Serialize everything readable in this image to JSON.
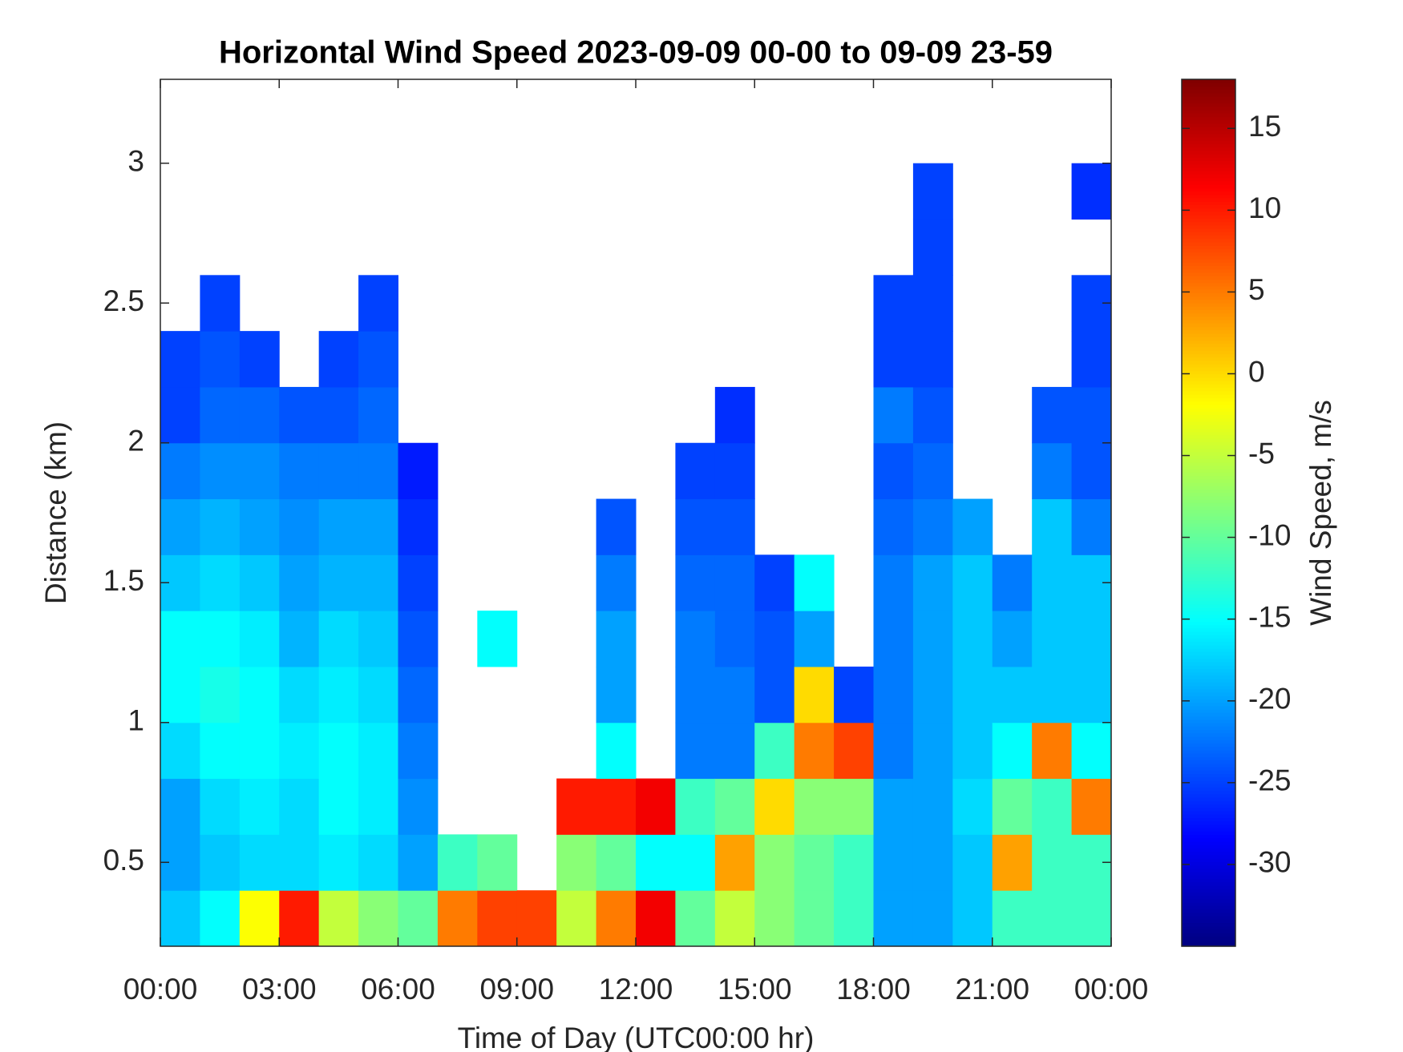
{
  "chart_data": {
    "type": "heatmap",
    "title": "Horizontal Wind Speed 2023-09-09 00-00 to 09-09 23-59",
    "xlabel": "Time of Day (UTC00:00 hr)",
    "ylabel": "Distance (km)",
    "colorbar_label": "Wind Speed, m/s",
    "colormap": "jet",
    "x": [
      0.5,
      1.5,
      2.5,
      3.5,
      4.5,
      5.5,
      6.5,
      7.5,
      8.5,
      9.5,
      10.5,
      11.5,
      12.5,
      13.5,
      14.5,
      15.5,
      16.5,
      17.5,
      18.5,
      19.5,
      20.5,
      21.5,
      22.5,
      23.5
    ],
    "y": [
      0.3,
      0.5,
      0.7,
      0.9,
      1.1,
      1.3,
      1.5,
      1.7,
      1.9,
      2.1,
      2.3,
      2.5,
      2.7,
      2.9,
      3.1
    ],
    "values": [
      [
        -18,
        -20,
        -20,
        -17,
        -15,
        -15,
        -18,
        -20,
        -22,
        -25,
        -25,
        null,
        null,
        null,
        null
      ],
      [
        -15,
        -18,
        -17,
        -15,
        -14,
        -15,
        -17,
        -19,
        -21,
        -23,
        -24,
        -25,
        null,
        null,
        null
      ],
      [
        -2,
        -17,
        -16,
        -15,
        -15,
        -16,
        -18,
        -20,
        -21,
        -23,
        -25,
        null,
        null,
        null,
        null
      ],
      [
        10,
        -17,
        -17,
        -16,
        -17,
        -19,
        -20,
        -21,
        -22,
        -24,
        null,
        null,
        null,
        null,
        null
      ],
      [
        -5,
        -16,
        -15,
        -15,
        -16,
        -17,
        -19,
        -20,
        -22,
        -24,
        -25,
        null,
        null,
        null,
        null
      ],
      [
        -8,
        -17,
        -16,
        -16,
        -17,
        -18,
        -19,
        -20,
        -22,
        -23,
        -24,
        -25,
        null,
        null,
        null
      ],
      [
        -10,
        -20,
        -21,
        -22,
        -23,
        -24,
        -25,
        -26,
        -27,
        null,
        null,
        null,
        null,
        null,
        null
      ],
      [
        5,
        -12,
        null,
        null,
        null,
        null,
        null,
        null,
        null,
        null,
        null,
        null,
        null,
        null,
        null
      ],
      [
        8,
        -10,
        null,
        null,
        null,
        -15,
        null,
        null,
        null,
        null,
        null,
        null,
        null,
        null,
        null
      ],
      [
        8,
        null,
        null,
        null,
        null,
        null,
        null,
        null,
        null,
        null,
        null,
        null,
        null,
        null,
        null
      ],
      [
        -5,
        -8,
        10,
        null,
        null,
        null,
        null,
        null,
        null,
        null,
        null,
        null,
        null,
        null,
        null
      ],
      [
        5,
        -10,
        10,
        -15,
        -20,
        -20,
        -22,
        -24,
        null,
        null,
        null,
        null,
        null,
        null,
        null
      ],
      [
        12,
        -15,
        12,
        null,
        null,
        null,
        null,
        null,
        null,
        null,
        null,
        null,
        null,
        null,
        null
      ],
      [
        -10,
        -15,
        -12,
        -22,
        -22,
        -22,
        -23,
        -24,
        -25,
        null,
        null,
        null,
        null,
        null,
        null
      ],
      [
        -5,
        3,
        -10,
        -22,
        -22,
        -23,
        -23,
        -24,
        -25,
        -26,
        null,
        null,
        null,
        null,
        null
      ],
      [
        -8,
        -8,
        0,
        -12,
        -24,
        -24,
        -25,
        null,
        null,
        null,
        null,
        null,
        null,
        null,
        null
      ],
      [
        -10,
        -10,
        -8,
        5,
        0,
        -20,
        -15,
        null,
        null,
        null,
        null,
        null,
        null,
        null,
        null
      ],
      [
        -12,
        -12,
        -8,
        8,
        -25,
        null,
        null,
        null,
        null,
        null,
        null,
        null,
        null,
        null,
        null
      ],
      [
        -20,
        -20,
        -20,
        -22,
        -22,
        -22,
        -22,
        -23,
        -24,
        -22,
        -25,
        -25,
        null,
        null,
        null
      ],
      [
        -20,
        -20,
        -20,
        -20,
        -20,
        -20,
        -20,
        -22,
        -23,
        -24,
        -25,
        -25,
        -25,
        -25,
        null
      ],
      [
        -18,
        -18,
        -17,
        -18,
        -18,
        -18,
        -18,
        -20,
        null,
        null,
        null,
        null,
        null,
        null,
        null
      ],
      [
        -12,
        3,
        -10,
        -15,
        -18,
        -20,
        -22,
        null,
        null,
        null,
        null,
        null,
        null,
        null,
        null
      ],
      [
        -12,
        -12,
        -12,
        5,
        -18,
        -18,
        -18,
        -18,
        -22,
        -24,
        null,
        null,
        null,
        null,
        null
      ],
      [
        -12,
        -12,
        5,
        -15,
        -18,
        -18,
        -18,
        -22,
        -24,
        -24,
        -25,
        -25,
        null,
        -26,
        null
      ]
    ],
    "xlim": [
      0,
      24
    ],
    "xticks": [
      {
        "value": 0,
        "label": "00:00"
      },
      {
        "value": 3,
        "label": "03:00"
      },
      {
        "value": 6,
        "label": "06:00"
      },
      {
        "value": 9,
        "label": "09:00"
      },
      {
        "value": 12,
        "label": "12:00"
      },
      {
        "value": 15,
        "label": "15:00"
      },
      {
        "value": 18,
        "label": "18:00"
      },
      {
        "value": 21,
        "label": "21:00"
      },
      {
        "value": 24,
        "label": "00:00"
      }
    ],
    "ylim": [
      0.2,
      3.3
    ],
    "yticks": [
      0.5,
      1,
      1.5,
      2,
      2.5,
      3
    ],
    "clim": [
      -35,
      18
    ],
    "cticks": [
      -30,
      -25,
      -20,
      -15,
      -10,
      -5,
      0,
      5,
      10,
      15
    ]
  }
}
